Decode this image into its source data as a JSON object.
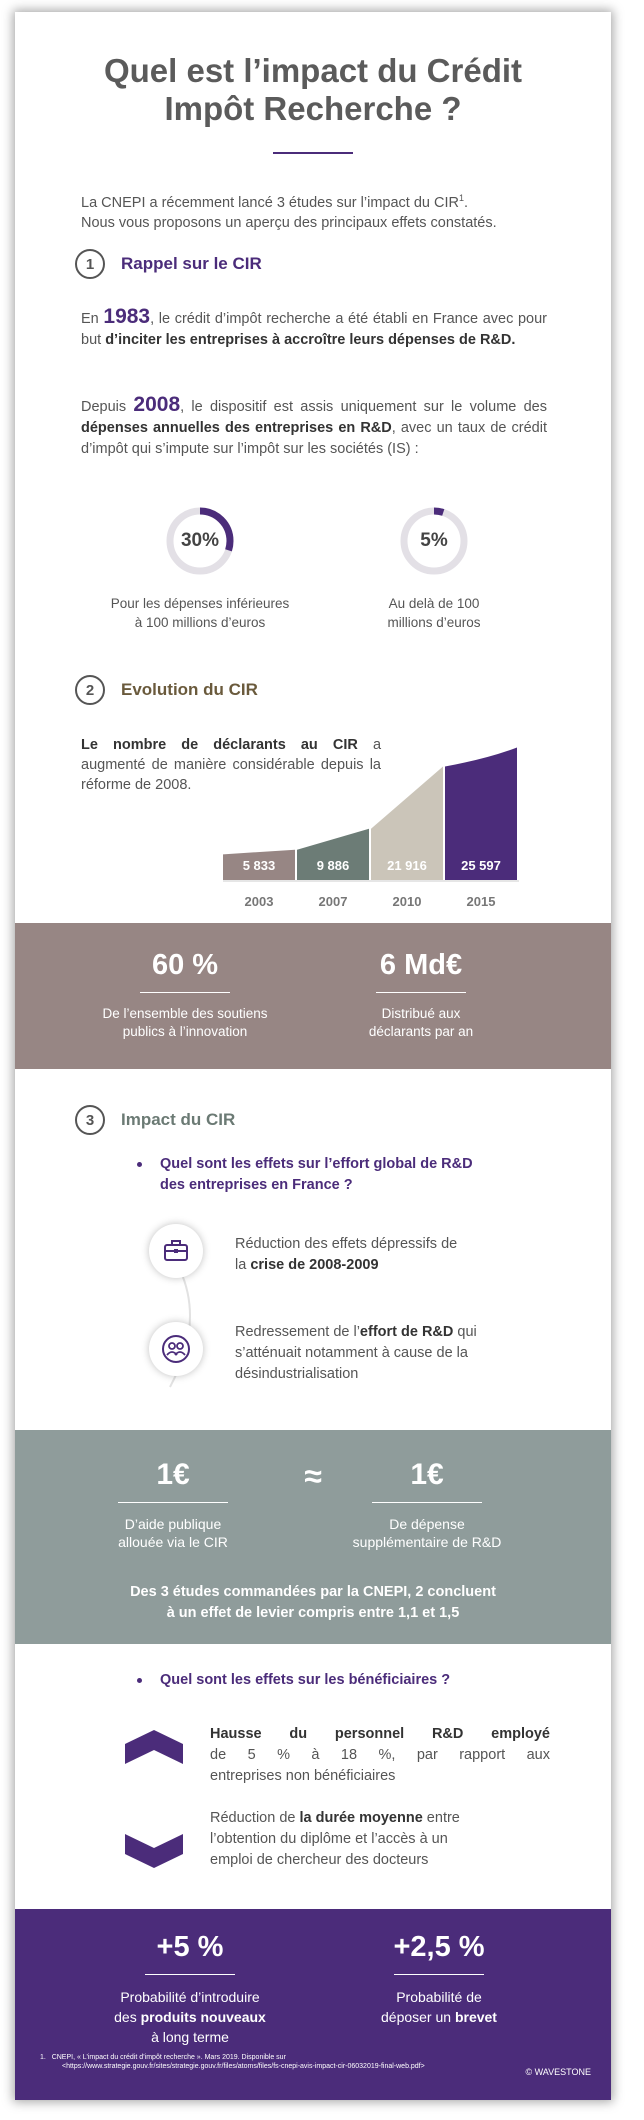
{
  "header": {
    "title_line1": "Quel est l’impact du Crédit",
    "title_line2": "Impôt Recherche ?",
    "intro_line1": "La CNEPI a récemment lancé 3 études sur l’impact du CIR",
    "intro_sup": "1",
    "intro_line1_end": ".",
    "intro_line2": "Nous vous proposons un aperçu des principaux effets constatés."
  },
  "section1": {
    "number": "1",
    "label": "Rappel sur le CIR",
    "p1_a": "En ",
    "p1_year": "1983",
    "p1_b": ", le crédit d’impôt recherche a été établi en France avec pour but ",
    "p1_bold": "d’inciter les entreprises à accroître leurs dépenses de R&D.",
    "p2_a": "Depuis ",
    "p2_year": "2008",
    "p2_b": ", le dispositif est assis uniquement sur le volume des ",
    "p2_bold": "dépenses annuelles des entreprises en R&D",
    "p2_c": ", avec un taux de crédit d’impôt qui s’impute sur l’impôt sur les sociétés (IS) :",
    "rates": [
      {
        "value": "30%",
        "fraction": 0.3,
        "caption1": "Pour les dépenses inférieures",
        "caption2": "à 100 millions d’euros"
      },
      {
        "value": "5%",
        "fraction": 0.05,
        "caption1": "Au delà de 100",
        "caption2": "millions d’euros"
      }
    ]
  },
  "section2": {
    "number": "2",
    "label": "Evolution du CIR",
    "text_bold": "Le nombre de déclarants au CIR",
    "text_rest": " a augmenté de manière considérable depuis la réforme de 2008.",
    "colors": [
      "#978684",
      "#6c7c76",
      "#cbc5b9",
      "#4b2c7a"
    ]
  },
  "chart_data": {
    "type": "bar",
    "categories": [
      "2003",
      "2007",
      "2010",
      "2015"
    ],
    "values": [
      5833,
      9886,
      21916,
      25597
    ],
    "value_labels": [
      "5 833",
      "9 886",
      "21 916",
      "25 597"
    ]
  },
  "band1": {
    "color": "#978684",
    "stats": [
      {
        "value": "60 %",
        "caption1": "De l’ensemble des soutiens",
        "caption2": "publics à l’innovation"
      },
      {
        "value": "6 Md€",
        "caption1": "Distribué aux",
        "caption2": "déclarants par an"
      }
    ]
  },
  "section3": {
    "number": "3",
    "label": "Impact du CIR",
    "question1_line1": "Quel sont les effets sur l’effort global de R&D",
    "question1_line2": "des entreprises  en France ?",
    "effect1_a": "Réduction des effets dépressifs de",
    "effect1_b": "la ",
    "effect1_bold": "crise de 2008-2009",
    "effect2_a": "Redressement de l’",
    "effect2_bold": "effort de R&D",
    "effect2_b": " qui",
    "effect2_line2": "s’atténuait notamment à cause de la",
    "effect2_line3": "désindustrialisation",
    "icons": [
      "briefcase-icon",
      "people-icon"
    ]
  },
  "band2": {
    "color": "#8f9c9b",
    "left_value": "1€",
    "left_caption1": "D’aide publique",
    "left_caption2": "allouée via le CIR",
    "approx": "≈",
    "right_value": "1€",
    "right_caption1": "De dépense",
    "right_caption2": "supplémentaire de R&D",
    "conclusion1": "Des 3 études commandées par la CNEPI, 2 concluent",
    "conclusion2": "à un effet de levier compris entre 1,1 et 1,5"
  },
  "beneficiaries": {
    "question": "Quel sont les effets sur les bénéficiaires ?",
    "item1_bold": "Hausse du personnel R&D employé",
    "item1_line2": "de 5 % à 18 %, par rapport aux",
    "item1_line3": "entreprises non bénéficiaires",
    "item2_a": "Réduction de ",
    "item2_bold": "la durée moyenne",
    "item2_b": " entre",
    "item2_line2": "l’obtention du diplôme et l’accès à un",
    "item2_line3": "emploi de chercheur des docteurs",
    "icons": [
      "chevron-up-icon",
      "chevron-down-icon"
    ]
  },
  "band3": {
    "color": "#4b2c7a",
    "stats": [
      {
        "value": "+5 %",
        "caption1": "Probabilité d’introduire",
        "caption2_a": "des ",
        "caption2_bold": "produits nouveaux",
        "caption3": "à long terme"
      },
      {
        "value": "+2,5 %",
        "caption1": "Probabilité de",
        "caption2_a": "déposer un ",
        "caption2_bold": "brevet",
        "caption3": ""
      }
    ]
  },
  "footer": {
    "footnote_num": "1.",
    "footnote_line1": "CNEPI, « L’impact du crédit d’impôt recherche ». Mars 2019. Disponible sur",
    "footnote_line2": "<https://www.strategie.gouv.fr/sites/strategie.gouv.fr/files/atoms/files/fs-cnepi-avis-impact-cir-06032019-final-web.pdf>",
    "brand": "© WAVESTONE"
  }
}
